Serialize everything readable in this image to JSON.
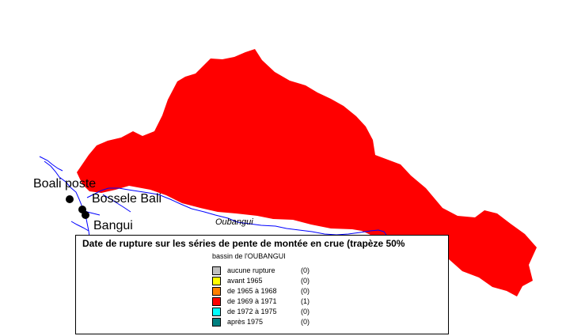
{
  "colors": {
    "basin_fill": "#ff0000",
    "river": "#0000ff",
    "station": "#000000"
  },
  "stations": [
    {
      "name": "Boali poste"
    },
    {
      "name": "Bossele Bali"
    },
    {
      "name": "Bangui"
    }
  ],
  "river_name": "Oubangui",
  "legend": {
    "title": "Date de rupture sur les séries de pente de montée en crue (trapèze 50%",
    "subtitle": "bassin de l'OUBANGUI",
    "items": [
      {
        "label": "aucune rupture",
        "count": "(0)",
        "color": "#c0c0c0"
      },
      {
        "label": "avant 1965",
        "count": "(0)",
        "color": "#ffff00"
      },
      {
        "label": "de 1965 à 1968",
        "count": "(0)",
        "color": "#ff8000"
      },
      {
        "label": "de 1969 à 1971",
        "count": "(1)",
        "color": "#ff0000"
      },
      {
        "label": "de 1972 à 1975",
        "count": "(0)",
        "color": "#00ffff"
      },
      {
        "label": "après 1975",
        "count": "(0)",
        "color": "#008080"
      }
    ]
  }
}
